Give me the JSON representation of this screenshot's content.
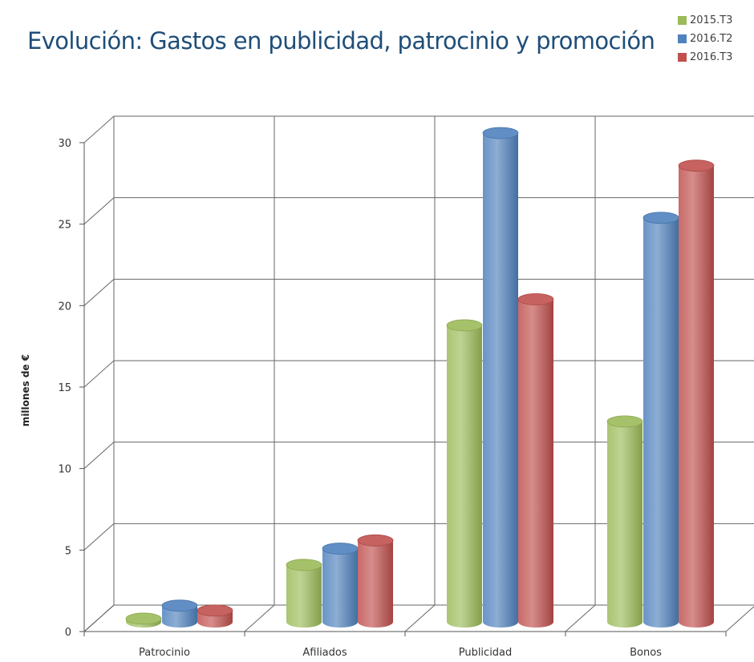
{
  "chart_data": {
    "type": "bar",
    "title": "Evolución: Gastos en publicidad, patrocinio y promoción",
    "ylabel": "millones de €",
    "xlabel": "",
    "ylim": [
      0,
      30
    ],
    "yticks": [
      0,
      5,
      10,
      15,
      20,
      25,
      30
    ],
    "categories": [
      "Patrocinio",
      "Afiliados",
      "Publicidad",
      "Bonos"
    ],
    "series": [
      {
        "name": "2015.T3",
        "color": "#9bbb59",
        "values": [
          0.2,
          3.5,
          18.2,
          12.3
        ]
      },
      {
        "name": "2016.T2",
        "color": "#4f81bd",
        "values": [
          1.0,
          4.5,
          30.0,
          24.8
        ]
      },
      {
        "name": "2016.T3",
        "color": "#c0504d",
        "values": [
          0.7,
          5.0,
          19.8,
          28.0
        ]
      }
    ],
    "grid": true,
    "legend": "top-right",
    "style": "3d-cylinder"
  }
}
